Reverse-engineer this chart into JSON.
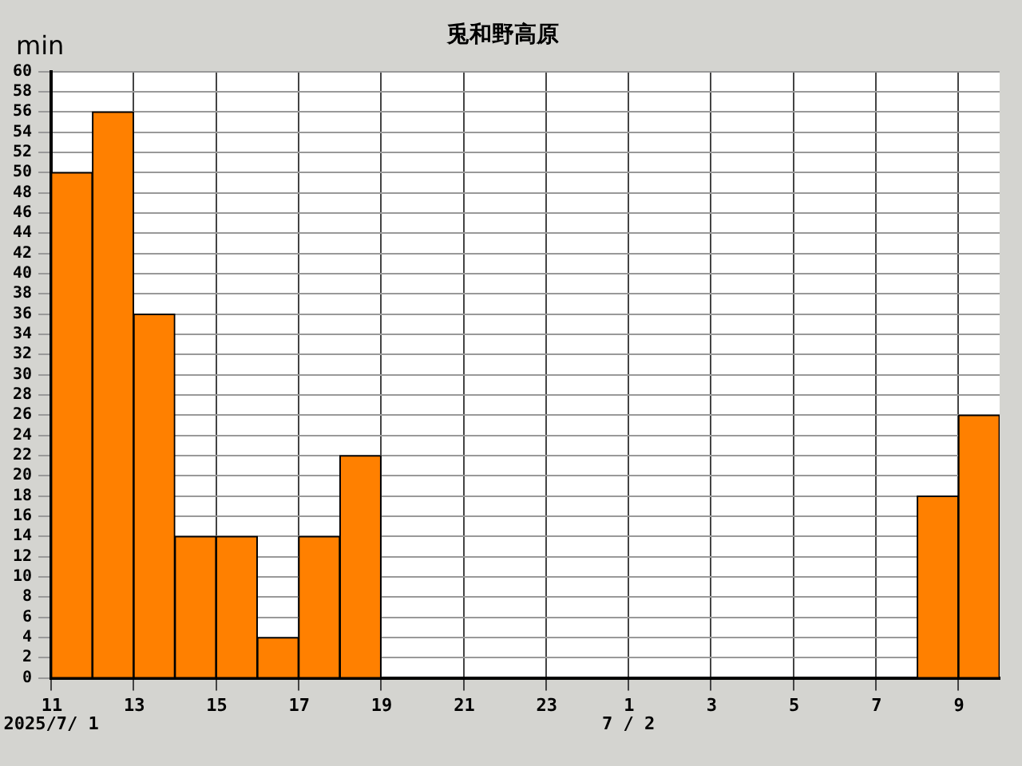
{
  "chart_data": {
    "type": "bar",
    "title": "兎和野高原",
    "ylabel": "min",
    "categories": [
      "11",
      null,
      "13",
      null,
      "15",
      null,
      "17",
      null,
      "19",
      null,
      "21",
      null,
      "23",
      null,
      "1",
      null,
      "3",
      null,
      "5",
      null,
      "7",
      null,
      "9"
    ],
    "values": [
      50,
      56,
      36,
      14,
      14,
      4,
      14,
      22,
      0,
      0,
      0,
      0,
      0,
      0,
      0,
      0,
      0,
      0,
      0,
      0,
      0,
      18,
      26
    ],
    "color": "#ff8000",
    "ylim": [
      0,
      60
    ],
    "yticks": [
      0,
      2,
      4,
      6,
      8,
      10,
      12,
      14,
      16,
      18,
      20,
      22,
      24,
      26,
      28,
      30,
      32,
      34,
      36,
      38,
      40,
      42,
      44,
      46,
      48,
      50,
      52,
      54,
      56,
      58,
      60
    ],
    "grid": true,
    "legend": false,
    "annotations": [
      "2025/7/ 1",
      "7 / 2"
    ]
  }
}
